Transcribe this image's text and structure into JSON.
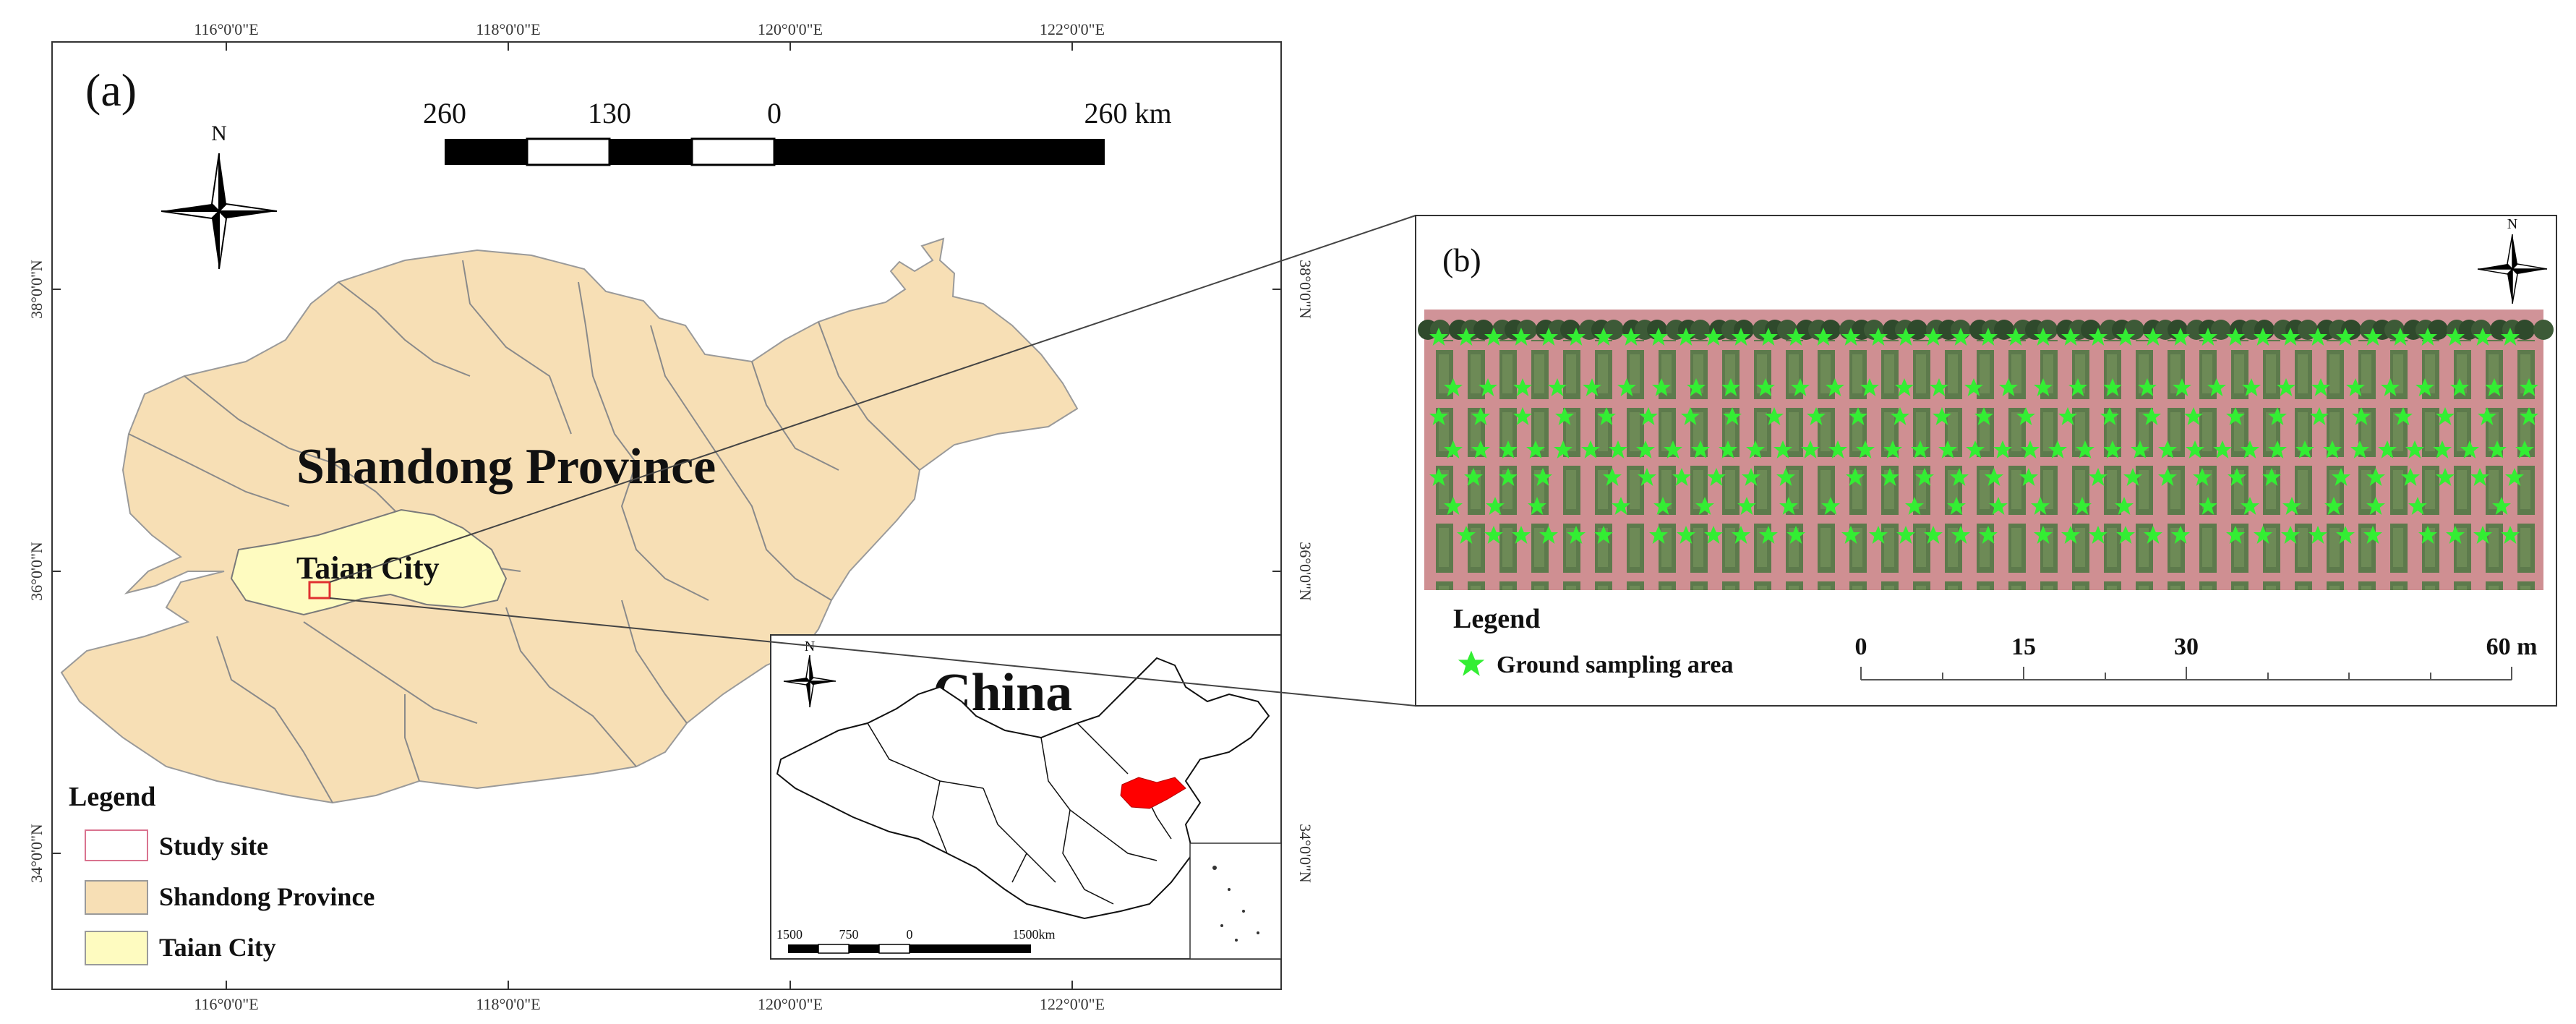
{
  "panel_a": {
    "label": "(a)",
    "north_label": "N",
    "top_ticks": [
      "116°0'0\"E",
      "118°0'0\"E",
      "120°0'0\"E",
      "122°0'0\"E"
    ],
    "bottom_ticks": [
      "116°0'0\"E",
      "118°0'0\"E",
      "120°0'0\"E",
      "122°0'0\"E"
    ],
    "left_ticks": [
      "38°0'0\"N",
      "36°0'0\"N",
      "34°0'0\"N"
    ],
    "right_ticks": [
      "38°0'0\"N",
      "36°0'0\"N",
      "34°0'0\"N"
    ],
    "scale_labels": [
      "260",
      "130",
      "0",
      "260 km"
    ],
    "province_label": "Shandong Province",
    "city_label": "Taian City",
    "legend": {
      "title": "Legend",
      "items": [
        {
          "label": "Study site",
          "color": "#d9738f"
        },
        {
          "label": "Shandong Province",
          "color": "#f7dfb5"
        },
        {
          "label": "Taian City",
          "color": "#fefbc0"
        }
      ]
    }
  },
  "inset_china": {
    "title": "China",
    "north_label": "N",
    "scale_labels": [
      "1500",
      "750",
      "0",
      "1500km"
    ],
    "highlight_color": "#ff0000"
  },
  "panel_b": {
    "label": "(b)",
    "north_label": "N",
    "legend": {
      "title": "Legend",
      "items": [
        {
          "label": "Ground sampling area",
          "color": "#33ee33"
        }
      ]
    },
    "scale_labels": [
      "0",
      "15",
      "30",
      "60 m"
    ]
  }
}
